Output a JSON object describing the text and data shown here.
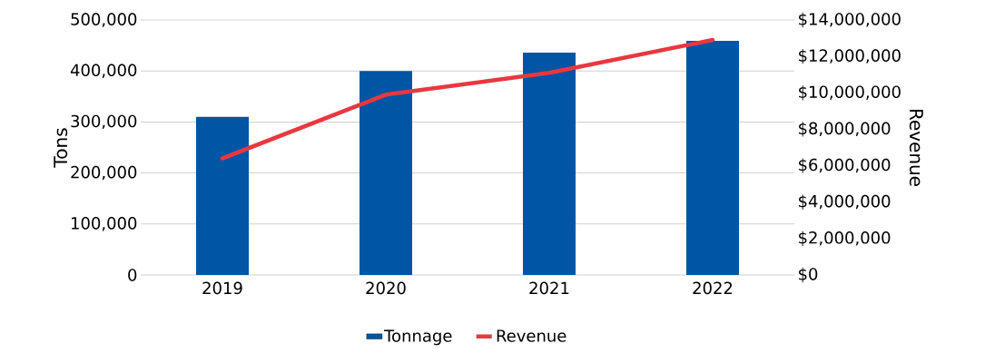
{
  "chart_data": {
    "type": "bar",
    "categories": [
      "2019",
      "2020",
      "2021",
      "2022"
    ],
    "series": [
      {
        "name": "Tonnage",
        "color": "#0055a5",
        "values": [
          310000,
          400000,
          436000,
          459000
        ]
      },
      {
        "name": "Revenue",
        "type": "line",
        "axis": "y2",
        "color": "#e8383f",
        "values": [
          6400000,
          9900000,
          11100000,
          12900000
        ]
      }
    ],
    "ylabel": "Tons",
    "y2label": "Revenue",
    "ylim": [
      0,
      500000
    ],
    "yticks": [
      {
        "value": 0,
        "label": "0"
      },
      {
        "value": 100000,
        "label": "100,000"
      },
      {
        "value": 200000,
        "label": "200,000"
      },
      {
        "value": 300000,
        "label": "300,000"
      },
      {
        "value": 400000,
        "label": "400,000"
      },
      {
        "value": 500000,
        "label": "500,000"
      }
    ],
    "y2lim": [
      0,
      14000000
    ],
    "y2ticks": [
      {
        "value": 0,
        "label": "$0"
      },
      {
        "value": 2000000,
        "label": "$2,000,000"
      },
      {
        "value": 4000000,
        "label": "$4,000,000"
      },
      {
        "value": 6000000,
        "label": "$6,000,000"
      },
      {
        "value": 8000000,
        "label": "$8,000,000"
      },
      {
        "value": 10000000,
        "label": "$10,000,000"
      },
      {
        "value": 12000000,
        "label": "$12,000,000"
      },
      {
        "value": 14000000,
        "label": "$14,000,000"
      }
    ],
    "grid": "y",
    "legend": "bottom"
  }
}
